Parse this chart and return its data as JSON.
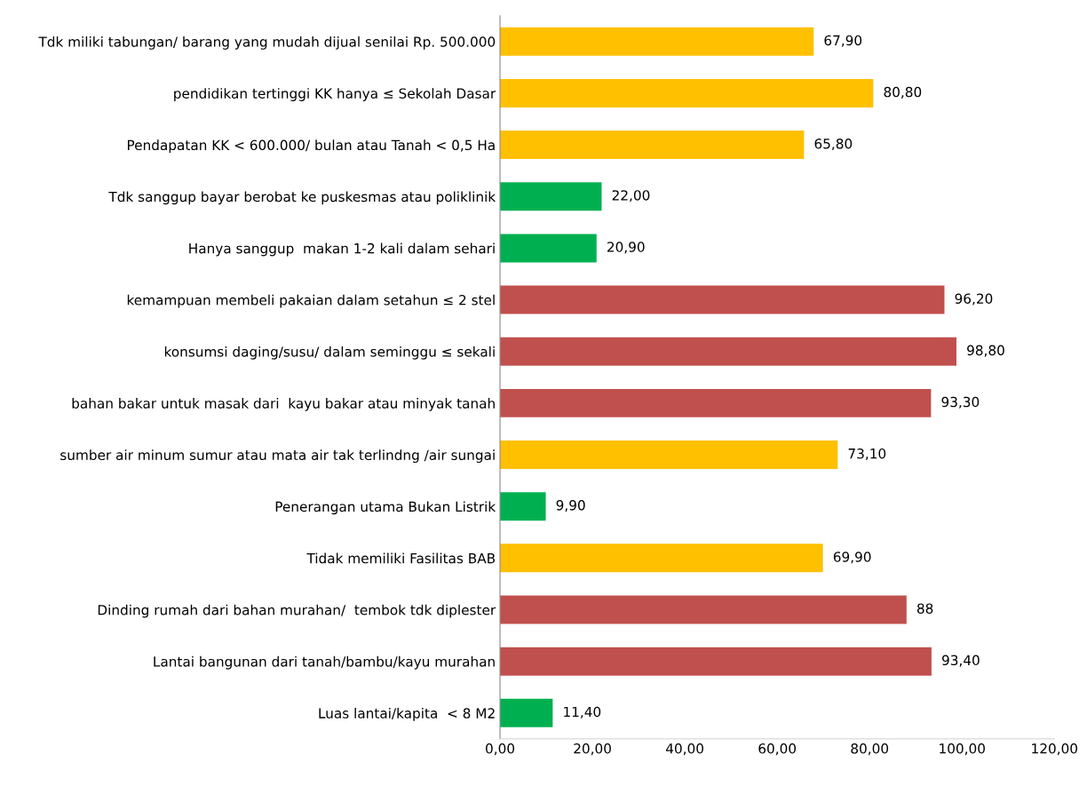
{
  "chart_data": {
    "type": "bar",
    "orientation": "horizontal",
    "categories": [
      "Tdk miliki tabungan/ barang yang mudah dijual senilai Rp. 500.000",
      "pendidikan tertinggi KK hanya ≤ Sekolah Dasar",
      "Pendapatan KK < 600.000/ bulan atau Tanah < 0,5 Ha",
      "Tdk sanggup bayar berobat ke puskesmas atau poliklinik",
      "Hanya sanggup  makan 1-2 kali dalam sehari",
      "kemampuan membeli pakaian dalam setahun ≤ 2 stel",
      "konsumsi daging/susu/ dalam seminggu ≤ sekali",
      "bahan bakar untuk masak dari  kayu bakar atau minyak tanah",
      "sumber air minum sumur atau mata air tak terlindng /air sungai",
      "Penerangan utama Bukan Listrik",
      "Tidak memiliki Fasilitas BAB",
      "Dinding rumah dari bahan murahan/  tembok tdk diplester",
      "Lantai bangunan dari tanah/bambu/kayu murahan",
      "Luas lantai/kapita  < 8 M2"
    ],
    "values": [
      67.9,
      80.8,
      65.8,
      22.0,
      20.9,
      96.2,
      98.8,
      93.3,
      73.1,
      9.9,
      69.9,
      88,
      93.4,
      11.4
    ],
    "value_labels": [
      "67,90",
      "80,80",
      "65,80",
      "22,00",
      "20,90",
      "96,20",
      "98,80",
      "93,30",
      "73,10",
      "9,90",
      "69,90",
      "88",
      "93,40",
      "11,40"
    ],
    "colors": [
      "#ffc000",
      "#ffc000",
      "#ffc000",
      "#00b050",
      "#00b050",
      "#c0504d",
      "#c0504d",
      "#c0504d",
      "#ffc000",
      "#00b050",
      "#ffc000",
      "#c0504d",
      "#c0504d",
      "#00b050"
    ],
    "xlim": [
      0,
      120
    ],
    "xticks": [
      {
        "value": 0,
        "label": "0,00"
      },
      {
        "value": 20,
        "label": "20,00"
      },
      {
        "value": 40,
        "label": "40,00"
      },
      {
        "value": 60,
        "label": "60,00"
      },
      {
        "value": 80,
        "label": "80,00"
      },
      {
        "value": 100,
        "label": "100,00"
      },
      {
        "value": 120,
        "label": "120,00"
      }
    ],
    "grid": false,
    "legend": false
  }
}
